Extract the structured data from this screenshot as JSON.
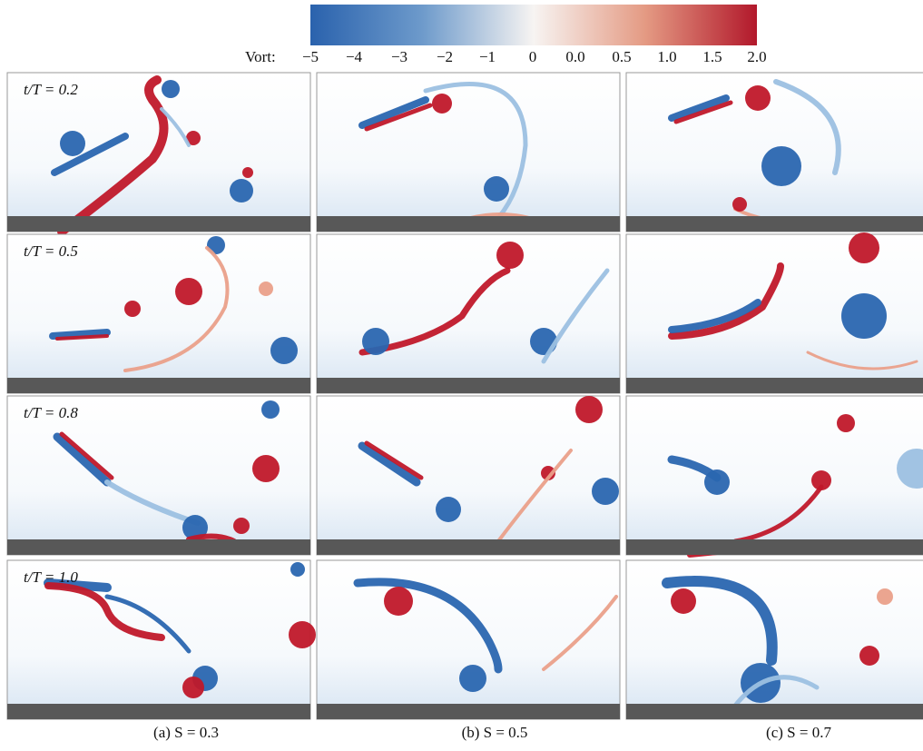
{
  "colorbar": {
    "label": "Vort:",
    "ticks": [
      "−5",
      "−4",
      "−3",
      "−2",
      "−1",
      "0",
      "0.0",
      "0.5",
      "1.0",
      "1.5",
      "2.0"
    ]
  },
  "rows": [
    {
      "label": "t/T = 0.2"
    },
    {
      "label": "t/T = 0.5"
    },
    {
      "label": "t/T = 0.8"
    },
    {
      "label": "t/T = 1.0"
    }
  ],
  "columns": [
    {
      "caption": "(a) S = 0.3"
    },
    {
      "caption": "(b) S = 0.5"
    },
    {
      "caption": "(c) S = 0.7"
    }
  ]
}
